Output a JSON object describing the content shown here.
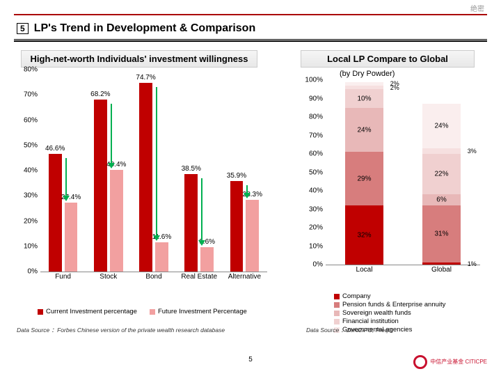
{
  "classification": "绝密",
  "slide_number": "5",
  "slide_title": "LP's Trend in Development & Comparison",
  "page_footer_number": "5",
  "logo_text": "中信产业基金\nCITICPE",
  "left_chart": {
    "title": "High-net-worth Individuals' investment willingness",
    "type": "grouped-bar",
    "ylim": [
      0,
      80
    ],
    "ytick_step": 10,
    "title_fontsize": 13,
    "label_fontsize": 10,
    "categories": [
      "Fund",
      "Stock",
      "Bond",
      "Real Estate",
      "Alternative"
    ],
    "series": [
      {
        "name": "Current Investment percentage",
        "color": "#c00000",
        "values": [
          46.6,
          68.2,
          74.7,
          38.5,
          35.9
        ]
      },
      {
        "name": "Future Investment Percentage",
        "color": "#f2a0a0",
        "values": [
          27.4,
          40.4,
          11.6,
          9.6,
          28.3
        ]
      }
    ],
    "value_labels": [
      [
        "46.6%",
        "27.4%"
      ],
      [
        "68.2%",
        "40.4%"
      ],
      [
        "74.7%",
        "11.6%"
      ],
      [
        "38.5%",
        "9.6%"
      ],
      [
        "35.9%",
        "28.3%"
      ]
    ],
    "bar_width": 0.32,
    "arrow_color": "#00b050",
    "arrows": [
      {
        "from_cat": 0,
        "direction": "down"
      },
      {
        "from_cat": 1,
        "direction": "down"
      },
      {
        "from_cat": 2,
        "direction": "down"
      },
      {
        "from_cat": 3,
        "direction": "down"
      },
      {
        "from_cat": 4,
        "direction": "down"
      }
    ],
    "citation": "Data Source ：Forbes Chinese version of the private wealth research database"
  },
  "right_chart": {
    "title": "Local LP Compare to Global",
    "subtitle": "(by Dry Powder)",
    "type": "stacked-bar-100",
    "ylim": [
      0,
      100
    ],
    "ytick_step": 10,
    "title_fontsize": 13,
    "label_fontsize": 10,
    "categories": [
      "Local",
      "Global"
    ],
    "stack_colors_legend": [
      {
        "name": "Company",
        "color": "#c00000"
      },
      {
        "name": "Pension funds & Enterprise annuity",
        "color": "#d77d7d"
      },
      {
        "name": "Sovereign wealth funds",
        "color": "#e8b8b8"
      },
      {
        "name": "Financial institution",
        "color": "#f0d0d0"
      },
      {
        "name": "Governmental agencies",
        "color": "#f8e6e6"
      }
    ],
    "stacks": {
      "Local": [
        {
          "label": "32%",
          "value": 32,
          "color": "#c00000"
        },
        {
          "label": "29%",
          "value": 29,
          "color": "#d77d7d"
        },
        {
          "label": "24%",
          "value": 24,
          "color": "#e8b8b8"
        },
        {
          "label": "10%",
          "value": 10,
          "color": "#f0d0d0"
        },
        {
          "label": "2%",
          "value": 2,
          "color": "#f6e0e0"
        },
        {
          "label": "2%",
          "value": 2,
          "color": "#faeeee"
        }
      ],
      "Global": [
        {
          "label": "1%",
          "value": 1,
          "color": "#c00000"
        },
        {
          "label": "31%",
          "value": 31,
          "color": "#d77d7d"
        },
        {
          "label": "6%",
          "value": 6,
          "color": "#e8b8b8"
        },
        {
          "label": "22%",
          "value": 22,
          "color": "#f0d0d0"
        },
        {
          "label": "3%",
          "value": 3,
          "color": "#f6e0e0"
        },
        {
          "label": "24%",
          "value": 24,
          "color": "#faeeee"
        }
      ]
    },
    "bar_width": 0.5,
    "citation": "Data Source ：Zero2IPO, Preqin"
  }
}
